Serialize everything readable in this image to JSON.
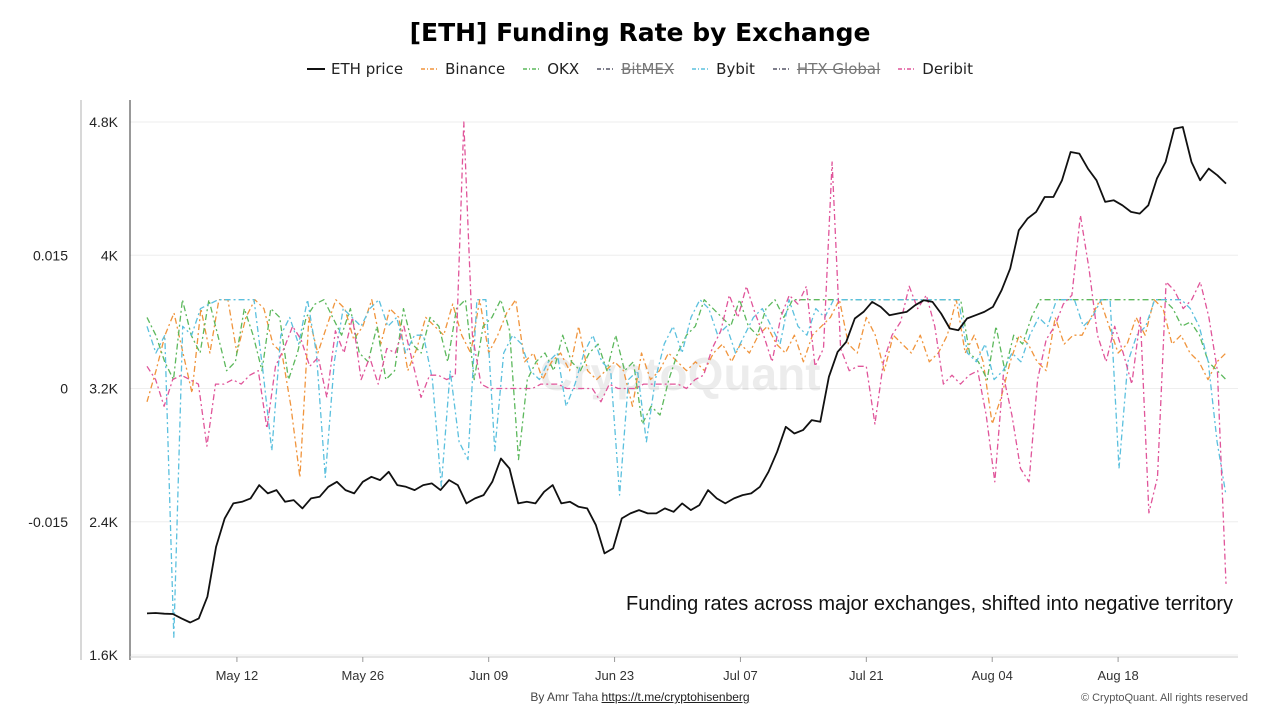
{
  "chart_data": {
    "type": "line",
    "title": "[ETH] Funding Rate by Exchange",
    "watermark": "CryptoQuant",
    "annotation": "Funding rates across major exchanges, shifted into negative territory",
    "footer": {
      "credit_prefix": "By Amr Taha",
      "credit_link": "https://t.me/cryptohisenberg",
      "copyright": "© CryptoQuant. All rights reserved"
    },
    "x_ticks": [
      "May 12",
      "May 26",
      "Jun 09",
      "Jun 23",
      "Jul 07",
      "Jul 21",
      "Aug 04",
      "Aug 18"
    ],
    "x_range_days": [
      0,
      120
    ],
    "x_tick_days": [
      10,
      24,
      38,
      52,
      66,
      80,
      94,
      108
    ],
    "y_left": {
      "ticks": [
        "0.015",
        "0",
        "-0.015"
      ],
      "tick_values": [
        0.015,
        0,
        -0.015
      ],
      "range": [
        -0.03,
        0.03
      ]
    },
    "y_right": {
      "ticks": [
        "4.8K",
        "4K",
        "3.2K",
        "2.4K",
        "1.6K"
      ],
      "tick_values": [
        4800,
        4000,
        3200,
        2400,
        1600
      ],
      "range": [
        1600,
        4800
      ]
    },
    "series": [
      {
        "name": "ETH price",
        "axis": "right",
        "color": "#111111",
        "dash": "solid",
        "visible": true,
        "values": [
          1850,
          1852,
          1848,
          1846,
          1820,
          1795,
          1820,
          1950,
          2250,
          2420,
          2510,
          2520,
          2540,
          2620,
          2570,
          2590,
          2520,
          2530,
          2480,
          2540,
          2550,
          2610,
          2640,
          2590,
          2570,
          2640,
          2670,
          2650,
          2700,
          2620,
          2610,
          2590,
          2620,
          2630,
          2590,
          2650,
          2620,
          2510,
          2540,
          2560,
          2640,
          2780,
          2720,
          2510,
          2520,
          2510,
          2580,
          2620,
          2510,
          2520,
          2490,
          2480,
          2380,
          2210,
          2240,
          2420,
          2450,
          2470,
          2450,
          2450,
          2480,
          2460,
          2510,
          2470,
          2500,
          2590,
          2540,
          2510,
          2540,
          2560,
          2570,
          2610,
          2700,
          2820,
          2970,
          2930,
          2950,
          3010,
          3000,
          3270,
          3420,
          3480,
          3620,
          3660,
          3720,
          3690,
          3640,
          3650,
          3660,
          3700,
          3730,
          3720,
          3650,
          3560,
          3550,
          3620,
          3640,
          3660,
          3690,
          3790,
          3920,
          4150,
          4220,
          4260,
          4350,
          4350,
          4450,
          4620,
          4610,
          4520,
          4450,
          4320,
          4330,
          4300,
          4260,
          4250,
          4300,
          4460,
          4560,
          4760,
          4770,
          4560,
          4450,
          4520,
          4480,
          4430
        ]
      },
      {
        "name": "Binance",
        "axis": "left",
        "color": "#f0943c",
        "dash": "6,3,2,3",
        "visible": true,
        "values": [
          -0.0015,
          0.002,
          0.006,
          0.0085,
          0.004,
          -0.0005,
          0.009,
          0.004,
          0.01,
          0.01,
          0.004,
          0.008,
          0.01,
          0.009,
          0.005,
          0.004,
          -0.002,
          -0.01,
          0.008,
          0.004,
          0.007,
          0.01,
          0.009,
          0.0055,
          0.007,
          0.01,
          0.005,
          0.009,
          0.008,
          0.002,
          0.0045,
          0.008,
          0.007,
          0.006,
          0.0095,
          0.006,
          0.004,
          0.01,
          0.004,
          0.006,
          0.0085,
          0.01,
          0.003,
          0.004,
          0.001,
          0.003,
          0.004,
          0.002,
          0.007,
          0.002,
          0.001,
          0.002,
          0.003,
          0.002,
          -0.002,
          0.004,
          0.001,
          0.002,
          0.004,
          0.003,
          0.002,
          0.003,
          0.002,
          0.004,
          0.005,
          0.003,
          0.005,
          0.004,
          0.006,
          0.007,
          0.005,
          0.004,
          0.006,
          0.003,
          0.006,
          0.007,
          0.008,
          0.01,
          0.005,
          0.004,
          0.008,
          0.006,
          0.002,
          0.006,
          0.005,
          0.004,
          0.006,
          0.003,
          0.004,
          0.006,
          0.01,
          0.004,
          0.006,
          0.003,
          -0.004,
          -0.001,
          0.003,
          0.006,
          0.005,
          0.003,
          0.002,
          0.008,
          0.005,
          0.006,
          0.006,
          0.008,
          0.01,
          0.007,
          0.004,
          0.005,
          0.008,
          0.006,
          0.01,
          0.009,
          0.005,
          0.006,
          0.004,
          0.003,
          0.001,
          0.003,
          0.004
        ]
      },
      {
        "name": "OKX",
        "axis": "left",
        "color": "#5cb85c",
        "dash": "6,3,2,3",
        "visible": true,
        "values": [
          0.008,
          0.006,
          0.003,
          0.001,
          0.01,
          0.006,
          0.004,
          0.01,
          0.006,
          0.002,
          0.003,
          0.009,
          0.006,
          0.002,
          0.009,
          0.008,
          0.001,
          0.004,
          0.008,
          0.0095,
          0.01,
          0.008,
          0.006,
          0.009,
          0.004,
          0.003,
          0.007,
          0.001,
          0.002,
          0.009,
          0.005,
          0.004,
          0.008,
          0.007,
          0.003,
          0.009,
          0.01,
          0.001,
          0.007,
          0.008,
          0.01,
          0.0065,
          -0.008,
          0.001,
          0.003,
          0.004,
          0.002,
          0.006,
          0.003,
          0.002,
          0.004,
          0.005,
          0.002,
          0.006,
          0.002,
          0.003,
          -0.004,
          -0.002,
          -0.003,
          0.001,
          0.004,
          0.006,
          0.007,
          0.01,
          0.009,
          0.008,
          0.007,
          0.01,
          0.007,
          0.006,
          0.009,
          0.01,
          0.008,
          0.01,
          0.01,
          0.01,
          0.01,
          0.01,
          0.01,
          0.01,
          0.01,
          0.01,
          0.01,
          0.01,
          0.01,
          0.01,
          0.01,
          0.01,
          0.01,
          0.01,
          0.01,
          0.01,
          0.01,
          0.004,
          0.003,
          0.001,
          0.007,
          0.002,
          0.006,
          0.005,
          0.008,
          0.01,
          0.01,
          0.01,
          0.01,
          0.01,
          0.01,
          0.01,
          0.01,
          0.01,
          0.01,
          0.01,
          0.01,
          0.01,
          0.01,
          0.01,
          0.009,
          0.007,
          0.0075,
          0.006,
          0.003,
          0.002,
          0.001
        ]
      },
      {
        "name": "BitMEX",
        "axis": "left",
        "color": "#555566",
        "dash": "6,3,2,3",
        "visible": false,
        "values": []
      },
      {
        "name": "Bybit",
        "axis": "left",
        "color": "#5bc0de",
        "dash": "6,3,2,3",
        "visible": true,
        "values": [
          0.007,
          0.004,
          0.006,
          -0.028,
          0.007,
          0.006,
          0.009,
          0.0095,
          0.01,
          0.01,
          0.01,
          0.01,
          0.01,
          0.002,
          -0.007,
          0.006,
          0.008,
          0.005,
          0.01,
          0.004,
          -0.01,
          0.003,
          0.009,
          0.008,
          0.007,
          0.009,
          0.01,
          0.007,
          0.008,
          0.004,
          0.006,
          0.006,
          0.001,
          -0.011,
          0.002,
          -0.006,
          -0.008,
          0.01,
          0.01,
          -0.007,
          0.004,
          0.006,
          0.005,
          0.002,
          0.001,
          0.003,
          0.004,
          -0.002,
          0.0005,
          0.004,
          0.006,
          0.003,
          0.002,
          -0.012,
          0.001,
          0.002,
          -0.006,
          0.001,
          0.005,
          0.007,
          0.004,
          0.008,
          0.01,
          0.009,
          0.006,
          0.007,
          0.004,
          0.006,
          0.008,
          0.009,
          0.007,
          0.005,
          0.01,
          0.007,
          0.006,
          0.009,
          0.008,
          0.01,
          0.01,
          0.01,
          0.01,
          0.01,
          0.01,
          0.01,
          0.01,
          0.01,
          0.01,
          0.01,
          0.01,
          0.01,
          0.01,
          0.01,
          0.004,
          0.003,
          0.005,
          0.001,
          0.002,
          0.004,
          0.003,
          0.006,
          0.008,
          0.007,
          0.01,
          0.01,
          0.01,
          0.007,
          0.008,
          0.01,
          0.01,
          -0.009,
          0.003,
          0.006,
          0.007,
          0.01,
          0.01,
          0.01,
          0.01,
          0.009,
          0.007,
          0.003,
          -0.006,
          -0.012
        ]
      },
      {
        "name": "HTX Global",
        "axis": "left",
        "color": "#555566",
        "dash": "6,3,2,3",
        "visible": false,
        "values": []
      },
      {
        "name": "Deribit",
        "axis": "left",
        "color": "#e0559a",
        "dash": "6,3,2,3",
        "visible": true,
        "values": [
          0.0025,
          0.001,
          -0.002,
          0.001,
          0.0015,
          0.001,
          0.0005,
          -0.0065,
          0.0005,
          0.0005,
          0.001,
          0.0005,
          0.0015,
          0.002,
          -0.0045,
          0.0025,
          0.0045,
          0.007,
          0.0055,
          0.0025,
          0.0035,
          -0.001,
          0.0065,
          0.004,
          0.008,
          0.001,
          0.0035,
          0.0005,
          0.0045,
          0.004,
          0.007,
          0.003,
          -0.001,
          0.0015,
          0.0015,
          0.001,
          0.0015,
          0.03,
          0.006,
          0.0005,
          0.0,
          0.0,
          0.0,
          0.0,
          0.0,
          0.0,
          0.0005,
          0.0005,
          0.0005,
          0.0,
          0.0,
          0.0,
          0.0,
          -0.0015,
          0.0005,
          0.0,
          0.0,
          0.0,
          0.0005,
          0.0005,
          0.0005,
          0.0005,
          0.0005,
          0.0,
          0.001,
          0.0015,
          0.0045,
          0.0065,
          0.0105,
          0.008,
          0.0115,
          0.0085,
          0.006,
          0.003,
          0.008,
          0.0105,
          0.0095,
          0.0115,
          0.0025,
          0.0045,
          0.0255,
          0.0045,
          0.002,
          0.0025,
          0.0025,
          -0.004,
          0.003,
          0.006,
          0.0075,
          0.0115,
          0.009,
          0.0105,
          0.007,
          0.0005,
          0.0015,
          0.0005,
          0.0015,
          0.002,
          -0.003,
          -0.0105,
          0.0015,
          -0.003,
          -0.009,
          -0.0105,
          0.001,
          0.0055,
          0.007,
          0.0095,
          0.0105,
          0.0195,
          0.0135,
          0.006,
          0.003,
          0.007,
          0.004,
          0.0005,
          0.008,
          -0.014,
          -0.01,
          0.012,
          0.011,
          0.009,
          0.01,
          0.012,
          0.008,
          0.002,
          -0.022
        ]
      }
    ]
  }
}
